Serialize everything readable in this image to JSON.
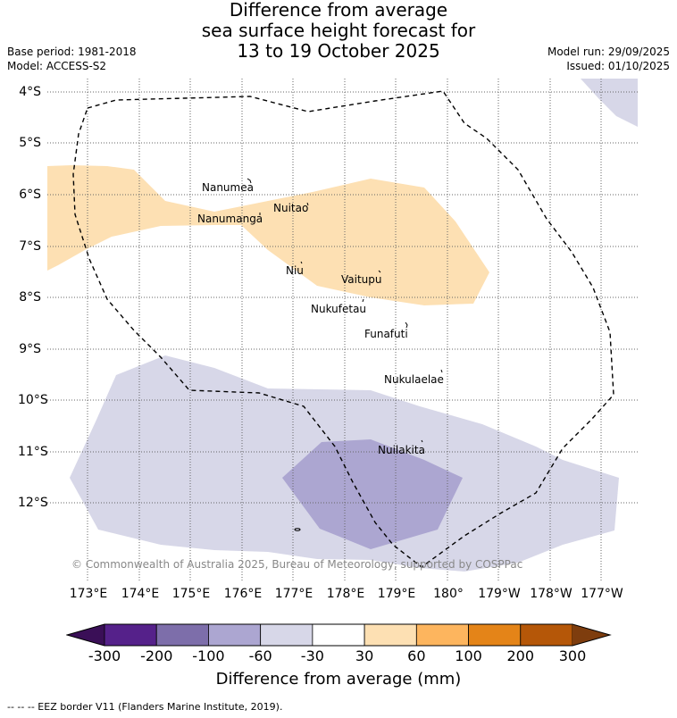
{
  "title": {
    "line1": "Difference from average",
    "line2": "sea surface height forecast for",
    "line3": "13 to 19 October 2025"
  },
  "meta_left": {
    "base_period": "Base period: 1981-2018",
    "model": "Model: ACCESS-S2"
  },
  "meta_right": {
    "model_run": "Model run: 29/09/2025",
    "issued": "Issued: 01/10/2025"
  },
  "latitude_labels": [
    "4°S",
    "5°S",
    "6°S",
    "7°S",
    "8°S",
    "9°S",
    "10°S",
    "11°S",
    "12°S"
  ],
  "longitude_labels": [
    "173°E",
    "174°E",
    "175°E",
    "176°E",
    "177°E",
    "178°E",
    "179°E",
    "180°",
    "179°W",
    "178°W",
    "177°W"
  ],
  "places": [
    {
      "name": "Nanumea"
    },
    {
      "name": "Nuitao"
    },
    {
      "name": "Nanumanga"
    },
    {
      "name": "Niu"
    },
    {
      "name": "Vaitupu"
    },
    {
      "name": "Nukufetau"
    },
    {
      "name": "Funafuti"
    },
    {
      "name": "Nukulaelae"
    },
    {
      "name": "Nuilakita"
    }
  ],
  "copyright": "© Commonwealth of Australia 2025, Bureau of Meteorology, supported by COSPPac",
  "colorbar": {
    "ticks": [
      "-300",
      "-200",
      "-100",
      "-60",
      "-30",
      "30",
      "60",
      "100",
      "200",
      "300"
    ],
    "colors": [
      "#3a0f57",
      "#55218a",
      "#7d6eaa",
      "#aca6d1",
      "#d7d7e8",
      "#ffffff",
      "#fde0b3",
      "#fdb55e",
      "#e48418",
      "#b55708",
      "#7e3d0e"
    ],
    "title": "Difference from average (mm)"
  },
  "map_colors": {
    "positive_30_60": "#fde0b3",
    "negative_30_60": "#d7d7e8",
    "negative_60_100": "#aca6d1",
    "grid": "#666666",
    "eez": "#000000"
  },
  "footnote": "--  --  -- EEZ border V11 (Flanders Marine Institute, 2019)."
}
